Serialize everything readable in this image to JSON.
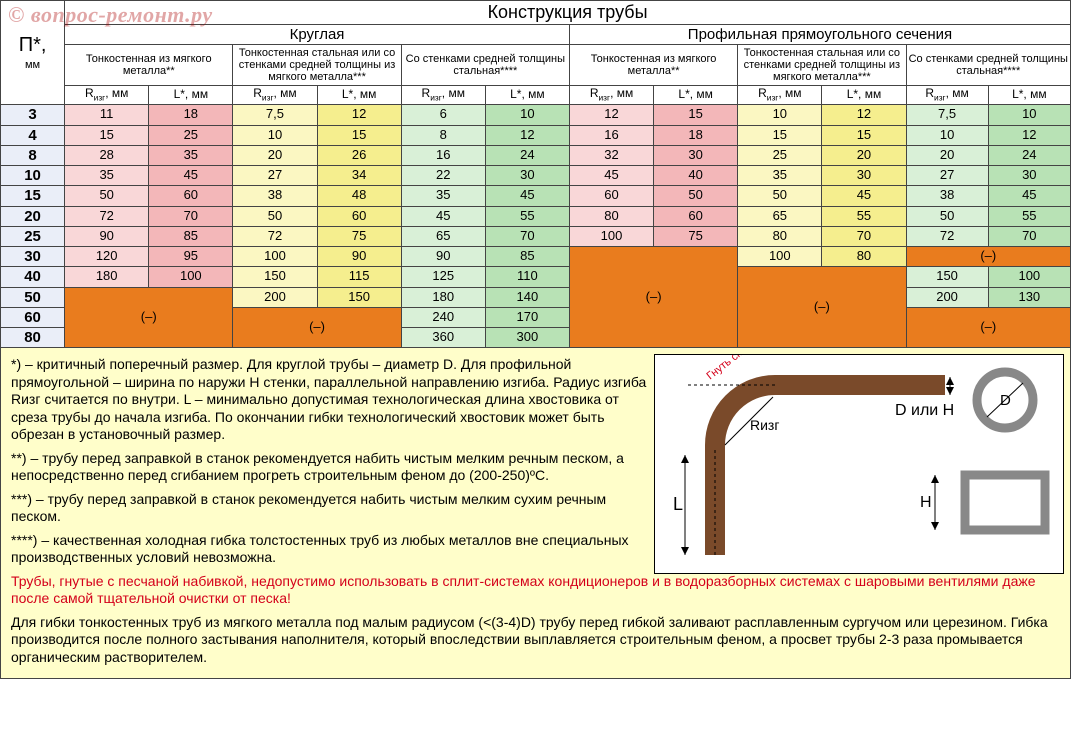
{
  "watermark": "© вопрос-ремонт.ру",
  "title": "Конструкция трубы",
  "pLabel": "П*,",
  "pUnit": "мм",
  "group1": "Круглая",
  "group2": "Профильная прямоугольного сечения",
  "sub1": "Тонкостенная из мягкого металла**",
  "sub2": "Тонкостенная стальная или со стенками средней толщины из мягкого металла***",
  "sub3": "Со стенками средней толщины стальная****",
  "Rlabel": "Rизг, мм",
  "Llabel": "L*, мм",
  "colors": {
    "pink_l": "#f9d7d8",
    "pink_d": "#f3b7b9",
    "yel_l": "#fbf7c2",
    "yel_d": "#f5ee8e",
    "grn_l": "#d9f0d7",
    "grn_d": "#b8e2b5",
    "blank": "#e97c1e"
  },
  "rows": [
    {
      "p": "3",
      "c": [
        [
          "11",
          "18"
        ],
        [
          "7,5",
          "12"
        ],
        [
          "6",
          "10"
        ],
        [
          "12",
          "15"
        ],
        [
          "10",
          "12"
        ],
        [
          "7,5",
          "10"
        ]
      ]
    },
    {
      "p": "4",
      "c": [
        [
          "15",
          "25"
        ],
        [
          "10",
          "15"
        ],
        [
          "8",
          "12"
        ],
        [
          "16",
          "18"
        ],
        [
          "15",
          "15"
        ],
        [
          "10",
          "12"
        ]
      ]
    },
    {
      "p": "8",
      "c": [
        [
          "28",
          "35"
        ],
        [
          "20",
          "26"
        ],
        [
          "16",
          "24"
        ],
        [
          "32",
          "30"
        ],
        [
          "25",
          "20"
        ],
        [
          "20",
          "24"
        ]
      ]
    },
    {
      "p": "10",
      "c": [
        [
          "35",
          "45"
        ],
        [
          "27",
          "34"
        ],
        [
          "22",
          "30"
        ],
        [
          "45",
          "40"
        ],
        [
          "35",
          "30"
        ],
        [
          "27",
          "30"
        ]
      ]
    },
    {
      "p": "15",
      "c": [
        [
          "50",
          "60"
        ],
        [
          "38",
          "48"
        ],
        [
          "35",
          "45"
        ],
        [
          "60",
          "50"
        ],
        [
          "50",
          "45"
        ],
        [
          "38",
          "45"
        ]
      ]
    },
    {
      "p": "20",
      "c": [
        [
          "72",
          "70"
        ],
        [
          "50",
          "60"
        ],
        [
          "45",
          "55"
        ],
        [
          "80",
          "60"
        ],
        [
          "65",
          "55"
        ],
        [
          "50",
          "55"
        ]
      ]
    },
    {
      "p": "25",
      "c": [
        [
          "90",
          "85"
        ],
        [
          "72",
          "75"
        ],
        [
          "65",
          "70"
        ],
        [
          "100",
          "75"
        ],
        [
          "80",
          "70"
        ],
        [
          "72",
          "70"
        ]
      ]
    },
    {
      "p": "30",
      "c": [
        [
          "120",
          "95"
        ],
        [
          "100",
          "90"
        ],
        [
          "90",
          "85"
        ],
        null,
        [
          "100",
          "80"
        ],
        null
      ]
    },
    {
      "p": "40",
      "c": [
        [
          "180",
          "100"
        ],
        [
          "150",
          "115"
        ],
        [
          "125",
          "110"
        ],
        null,
        null,
        [
          "150",
          "100"
        ]
      ]
    },
    {
      "p": "50",
      "c": [
        null,
        [
          "200",
          "150"
        ],
        [
          "180",
          "140"
        ],
        null,
        null,
        [
          "200",
          "130"
        ]
      ]
    },
    {
      "p": "60",
      "c": [
        null,
        null,
        [
          "240",
          "170"
        ],
        null,
        null,
        null
      ]
    },
    {
      "p": "80",
      "c": [
        null,
        null,
        [
          "360",
          "300"
        ],
        null,
        null,
        null
      ]
    }
  ],
  "blanks": {
    "col0": {
      "start": 9,
      "span": 3
    },
    "col1": {
      "start": 10,
      "span": 2
    },
    "col3": {
      "start": 7,
      "span": 5
    },
    "col4": {
      "start": 8,
      "span": 4
    },
    "col5": {
      "start": 7,
      "span": 1
    },
    "col5b": {
      "start": 10,
      "span": 2
    }
  },
  "blankLabel": "(–)",
  "notes": {
    "n1": "*) – критичный поперечный размер. Для круглой трубы – диаметр D. Для профильной прямоугольной – ширина по наружи H стенки, параллельной направлению изгиба. Радиус изгиба Rизг считается по внутри. L – минимально допустимая технологическая длина хвостовика от среза трубы до начала изгиба. По окончании гибки технологический хвостовик может быть обрезан в установочный размер.",
    "n2": "**) – трубу перед заправкой в станок рекомендуется набить чистым мелким речным песком, а непосредственно перед сгибанием прогреть строительным феном до (200-250)ºС.",
    "n3": "***) – трубу перед заправкой в станок рекомендуется набить чистым мелким сухим речным песком.",
    "n4": "****) – качественная холодная гибка толстостенных труб из любых металлов вне специальных производственных условий невозможна.",
    "warn": "Трубы, гнутые с песчаной набивкой, недопустимо использовать в сплит-системах кондиционеров и в водоразборных системах с шаровыми вентилями даже после самой тщательной очистки от песка!",
    "n5": "Для гибки тонкостенных труб из мягкого металла под малым радиусом (<(3-4)D) трубу перед гибкой заливают расплавленным сургучом или церезином. Гибка производится после полного застывания наполнителя, который впоследствии выплавляется строительным феном, а просвет трубы 2-3 раза промывается органическим растворителем."
  },
  "diag": {
    "Rlabel": "Rизг",
    "L": "L",
    "DorH": "D или H",
    "H": "H",
    "D": "D",
    "bend": "Гнуть сюда"
  }
}
